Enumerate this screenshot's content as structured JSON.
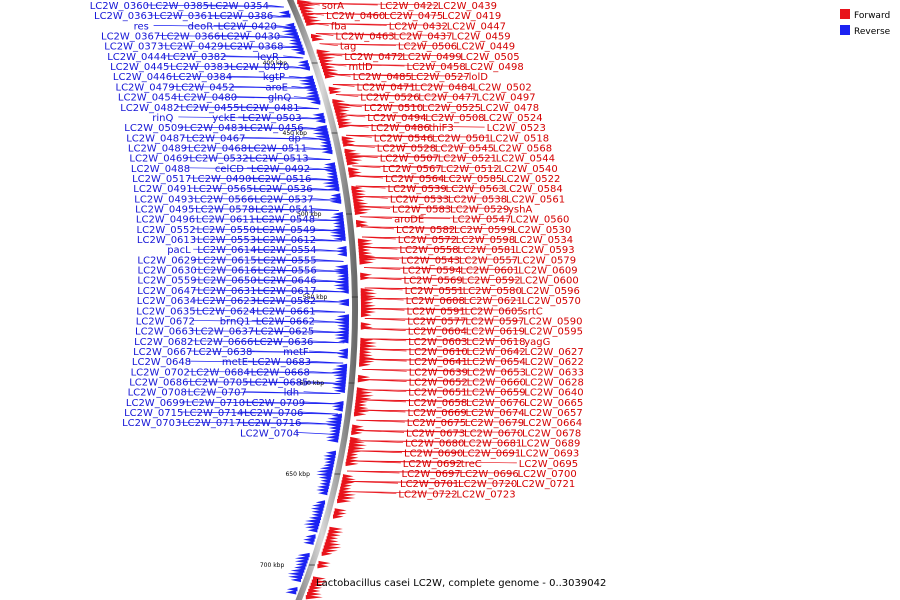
{
  "caption": "Lactobacillus casei LC2W, complete genome - 0..3039042",
  "legend": {
    "forward": {
      "label": "Forward",
      "color": "#e8131b"
    },
    "reverse": {
      "label": "Reverse",
      "color": "#1c22f2"
    }
  },
  "kbp_ticks": [
    "400 kbp",
    "450 kbp",
    "500 kbp",
    "550 kbp",
    "600 kbp",
    "650 kbp",
    "700 kbp"
  ],
  "forward_labels": [
    "sorA",
    "LC2W_0422",
    "LC2W_0439",
    "LC2W_0460",
    "LC2W_0475",
    "LC2W_0419",
    "fba",
    "LC2W_0432",
    "LC2W_0447",
    "LC2W_0463",
    "LC2W_0437",
    "LC2W_0459",
    "tag",
    "LC2W_0506",
    "LC2W_0449",
    "LC2W_0472",
    "LC2W_0499",
    "LC2W_0505",
    "mtlD",
    "LC2W_0458",
    "LC2W_0498",
    "LC2W_0485",
    "LC2W_0527",
    "lolD",
    "LC2W_0471",
    "LC2W_0484",
    "LC2W_0502",
    "LC2W_0526",
    "LC2W_0477",
    "LC2W_0497",
    "LC2W_0510",
    "LC2W_0525",
    "LC2W_0478",
    "LC2W_0494",
    "LC2W_0508",
    "LC2W_0524",
    "LC2W_0486",
    "thiF3",
    "LC2W_0523",
    "LC2W_0546",
    "LC2W_0501",
    "LC2W_0518",
    "LC2W_0528",
    "LC2W_0545",
    "LC2W_0568",
    "LC2W_0507",
    "LC2W_0521",
    "LC2W_0544",
    "LC2W_0567",
    "LC2W_0512",
    "LC2W_0540",
    "LC2W_0564",
    "LC2W_0585",
    "LC2W_0522",
    "LC2W_0539",
    "LC2W_0563",
    "LC2W_0584",
    "LC2W_0533",
    "LC2W_0538",
    "LC2W_0561",
    "LC2W_0583",
    "LC2W_0529",
    "yshA",
    "aroDE",
    "LC2W_0547",
    "LC2W_0560",
    "LC2W_0582",
    "LC2W_0599",
    "LC2W_0530",
    "LC2W_0572",
    "LC2W_0598",
    "LC2W_0534",
    "LC2W_0558",
    "LC2W_0581",
    "LC2W_0593",
    "LC2W_0543",
    "LC2W_0557",
    "LC2W_0579",
    "LC2W_0594",
    "LC2W_0601",
    "LC2W_0609",
    "LC2W_0569",
    "LC2W_0592",
    "LC2W_0600",
    "LC2W_0551",
    "LC2W_0580",
    "LC2W_0596",
    "LC2W_0608",
    "LC2W_0621",
    "LC2W_0570",
    "LC2W_0591",
    "LC2W_0605",
    "srtC",
    "LC2W_0577",
    "LC2W_0597",
    "LC2W_0590",
    "LC2W_0604",
    "LC2W_0619",
    "LC2W_0595",
    "LC2W_0603",
    "LC2W_0618",
    "yagG",
    "LC2W_0610",
    "LC2W_0642",
    "LC2W_0627",
    "LC2W_0641",
    "LC2W_0654",
    "LC2W_0622",
    "LC2W_0639",
    "LC2W_0653",
    "LC2W_0633",
    "LC2W_0652",
    "LC2W_0660",
    "LC2W_0628",
    "LC2W_0651",
    "LC2W_0659",
    "LC2W_0640",
    "LC2W_0658",
    "LC2W_0676",
    "LC2W_0665",
    "LC2W_0669",
    "LC2W_0674",
    "LC2W_0657",
    "LC2W_0675",
    "LC2W_0679",
    "LC2W_0664",
    "LC2W_0673",
    "LC2W_0670",
    "LC2W_0678",
    "LC2W_0680",
    "LC2W_0681",
    "LC2W_0689",
    "LC2W_0690",
    "LC2W_0691",
    "LC2W_0693",
    "LC2W_0692",
    "treC",
    "LC2W_0695",
    "LC2W_0697",
    "LC2W_0696",
    "LC2W_0700",
    "LC2W_0701",
    "LC2W_0720",
    "LC2W_0721",
    "LC2W_0722",
    "LC2W_0723"
  ],
  "reverse_labels": [
    "LC2W_0354",
    "LC2W_0385",
    "LC2W_0360",
    "LC2W_0386",
    "LC2W_0361",
    "LC2W_0363",
    "LC2W_0420",
    "deoR",
    "res",
    "LC2W_0430",
    "LC2W_0366",
    "LC2W_0367",
    "LC2W_0368",
    "LC2W_0429",
    "LC2W_0373",
    "levR",
    "LC2W_0382",
    "LC2W_0444",
    "LC2W_0470",
    "LC2W_0383",
    "LC2W_0445",
    "kgtP",
    "LC2W_0384",
    "LC2W_0446",
    "aroE",
    "LC2W_0452",
    "LC2W_0479",
    "glnQ",
    "LC2W_0480",
    "LC2W_0454",
    "LC2W_0481",
    "LC2W_0455",
    "LC2W_0482",
    "LC2W_0503",
    "yckE",
    "rinQ",
    "LC2W_0456",
    "LC2W_0483",
    "LC2W_0509",
    "dp",
    "LC2W_0467",
    "LC2W_0487",
    "LC2W_0511",
    "LC2W_0468",
    "LC2W_0489",
    "LC2W_0513",
    "LC2W_0532",
    "LC2W_0469",
    "LC2W_0492",
    "celCD",
    "LC2W_0488",
    "LC2W_0516",
    "LC2W_0490",
    "LC2W_0517",
    "LC2W_0536",
    "LC2W_0565",
    "LC2W_0491",
    "LC2W_0537",
    "LC2W_0566",
    "LC2W_0493",
    "LC2W_0541",
    "LC2W_0578",
    "LC2W_0495",
    "LC2W_0548",
    "LC2W_0611",
    "LC2W_0496",
    "LC2W_0549",
    "LC2W_0550",
    "LC2W_0552",
    "LC2W_0612",
    "LC2W_0553",
    "LC2W_0613",
    "LC2W_0554",
    "LC2W_0614",
    "pacL",
    "LC2W_0555",
    "LC2W_0615",
    "LC2W_0629",
    "LC2W_0556",
    "LC2W_0616",
    "LC2W_0630",
    "LC2W_0646",
    "LC2W_0650",
    "LC2W_0559",
    "LC2W_0617",
    "LC2W_0631",
    "LC2W_0647",
    "LC2W_0562",
    "LC2W_0623",
    "LC2W_0634",
    "LC2W_0661",
    "LC2W_0624",
    "LC2W_0635",
    "LC2W_0662",
    "brnQ1",
    "LC2W_0672",
    "LC2W_0625",
    "LC2W_0637",
    "LC2W_0663",
    "LC2W_0636",
    "LC2W_0666",
    "LC2W_0682",
    "metF",
    "LC2W_0638",
    "LC2W_0667",
    "LC2W_0683",
    "metE",
    "LC2W_0648",
    "LC2W_0668",
    "LC2W_0684",
    "LC2W_0702",
    "LC2W_0685",
    "LC2W_0705",
    "LC2W_0686",
    "ldh",
    "LC2W_0707",
    "LC2W_0708",
    "LC2W_0709",
    "LC2W_0710",
    "LC2W_0699",
    "LC2W_0706",
    "LC2W_0714",
    "LC2W_0715",
    "LC2W_0716",
    "LC2W_0717",
    "LC2W_0703",
    "LC2W_0704"
  ]
}
